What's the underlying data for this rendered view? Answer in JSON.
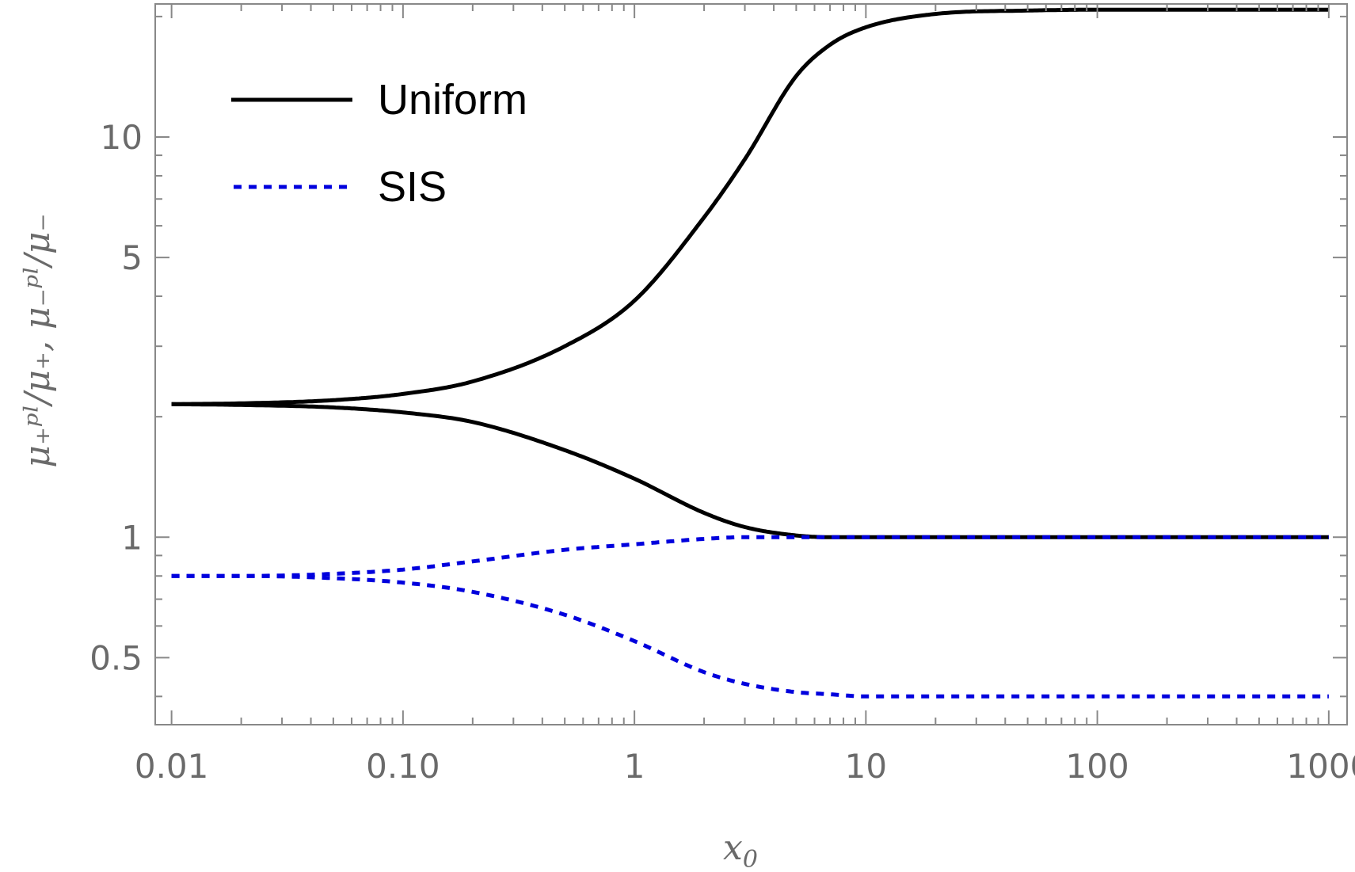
{
  "chart_data": {
    "type": "line",
    "title": "",
    "xlabel": "x",
    "xlabel_sub": "0",
    "ylabel": "μ₊ᵖˡ/μ₊,  μ₋ᵖˡ/μ₋",
    "x_scale": "log",
    "y_scale": "log",
    "xlim": [
      0.0085,
      1200
    ],
    "ylim": [
      0.34,
      21.5
    ],
    "x_ticks": [
      {
        "value": 0.01,
        "label": "0.01"
      },
      {
        "value": 0.1,
        "label": "0.10"
      },
      {
        "value": 1,
        "label": "1"
      },
      {
        "value": 10,
        "label": "10"
      },
      {
        "value": 100,
        "label": "100"
      },
      {
        "value": 1000,
        "label": "1000"
      }
    ],
    "y_ticks": [
      {
        "value": 0.5,
        "label": "0.5"
      },
      {
        "value": 1,
        "label": "1"
      },
      {
        "value": 5,
        "label": "5"
      },
      {
        "value": 10,
        "label": "10"
      }
    ],
    "grid": false,
    "legend_position": "top-left",
    "legend": [
      {
        "label": "Uniform",
        "color": "#000000",
        "style": "solid"
      },
      {
        "label": "SIS",
        "color": "#0000dd",
        "style": "dotted"
      }
    ],
    "series": [
      {
        "group": "Uniform",
        "color": "#000000",
        "style": "solid",
        "x": [
          0.01,
          0.02,
          0.05,
          0.1,
          0.2,
          0.5,
          1,
          2,
          3,
          5,
          7,
          10,
          20,
          50,
          100,
          1000
        ],
        "y": [
          2.15,
          2.16,
          2.2,
          2.28,
          2.45,
          3.0,
          3.9,
          6.3,
          8.8,
          14.2,
          17.0,
          18.8,
          20.3,
          20.7,
          20.8,
          20.8
        ]
      },
      {
        "group": "Uniform",
        "color": "#000000",
        "style": "solid",
        "x": [
          0.01,
          0.02,
          0.05,
          0.1,
          0.2,
          0.5,
          1,
          2,
          3,
          5,
          7,
          10,
          20,
          100,
          1000
        ],
        "y": [
          2.15,
          2.14,
          2.11,
          2.05,
          1.94,
          1.65,
          1.4,
          1.15,
          1.06,
          1.01,
          1.0,
          1.0,
          1.0,
          1.0,
          1.0
        ]
      },
      {
        "group": "SIS",
        "color": "#0000dd",
        "style": "dotted",
        "x": [
          0.01,
          0.02,
          0.05,
          0.1,
          0.2,
          0.5,
          1,
          2,
          3,
          5,
          10,
          100,
          1000
        ],
        "y": [
          0.8,
          0.8,
          0.81,
          0.83,
          0.87,
          0.93,
          0.96,
          0.99,
          1.0,
          1.0,
          1.0,
          1.0,
          1.0
        ]
      },
      {
        "group": "SIS",
        "color": "#0000dd",
        "style": "dotted",
        "x": [
          0.01,
          0.02,
          0.05,
          0.1,
          0.2,
          0.5,
          1,
          2,
          3,
          5,
          7,
          10,
          20,
          100,
          1000
        ],
        "y": [
          0.8,
          0.8,
          0.79,
          0.77,
          0.73,
          0.64,
          0.55,
          0.46,
          0.43,
          0.41,
          0.405,
          0.4,
          0.4,
          0.4,
          0.4
        ]
      }
    ]
  }
}
